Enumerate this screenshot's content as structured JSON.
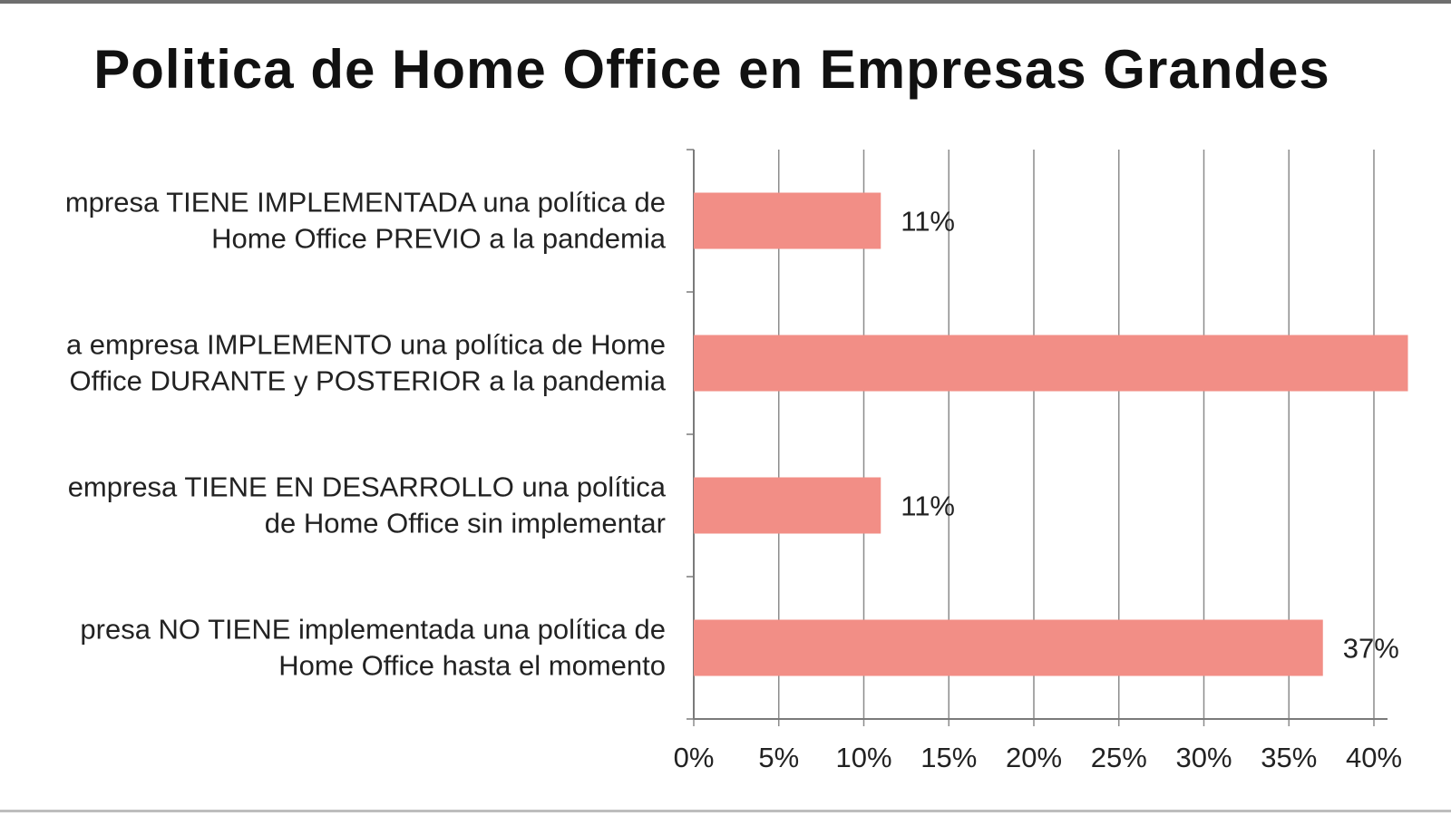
{
  "chart_data": {
    "type": "bar",
    "orientation": "horizontal",
    "title": "Politica de Home Office en Empresas Grandes",
    "categories": [
      [
        "mpresa TIENE IMPLEMENTADA una política de",
        "Home Office PREVIO a la pandemia"
      ],
      [
        "a empresa IMPLEMENTO una política de Home",
        "Office DURANTE y POSTERIOR a la pandemia"
      ],
      [
        "empresa TIENE EN DESARROLLO una política",
        "de Home Office sin implementar"
      ],
      [
        "presa NO TIENE implementada una política de",
        "Home Office hasta el momento"
      ]
    ],
    "values": [
      0.11,
      0.42,
      0.11,
      0.37
    ],
    "data_labels": [
      "11%",
      "",
      "11%",
      "37%"
    ],
    "xlim": [
      0,
      0.4
    ],
    "xticks": [
      "0%",
      "5%",
      "10%",
      "15%",
      "20%",
      "25%",
      "30%",
      "35%",
      "40%"
    ],
    "grid": true,
    "bar_color": "#f28e86"
  }
}
